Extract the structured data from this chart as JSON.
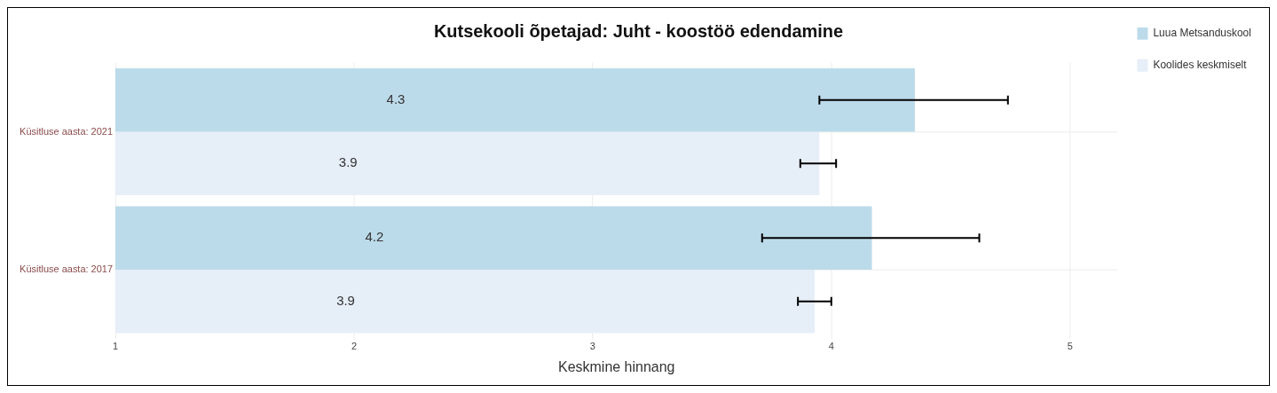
{
  "chart_data": {
    "type": "bar",
    "orientation": "horizontal",
    "title": "Kutsekooli õpetajad: Juht - koostöö edendamine",
    "xlabel": "Keskmine hinnang",
    "categories": [
      "Küsitluse aasta: 2021",
      "Küsitluse aasta: 2017"
    ],
    "series": [
      {
        "name": "Luua Metsanduskool",
        "color": "#bcdbea",
        "values": [
          4.35,
          4.17
        ],
        "value_labels": [
          "4.3",
          "4.2"
        ],
        "errors": [
          [
            3.95,
            4.74
          ],
          [
            3.71,
            4.62
          ]
        ]
      },
      {
        "name": "Koolides keskmiselt",
        "color": "#e6eef8",
        "values": [
          3.95,
          3.93
        ],
        "value_labels": [
          "3.9",
          "3.9"
        ],
        "errors": [
          [
            3.87,
            4.02
          ],
          [
            3.86,
            4.0
          ]
        ]
      }
    ],
    "xlim": [
      1,
      5.2
    ],
    "xticks": [
      1,
      2,
      3,
      4,
      5
    ],
    "grid": true,
    "legend": "top right"
  }
}
